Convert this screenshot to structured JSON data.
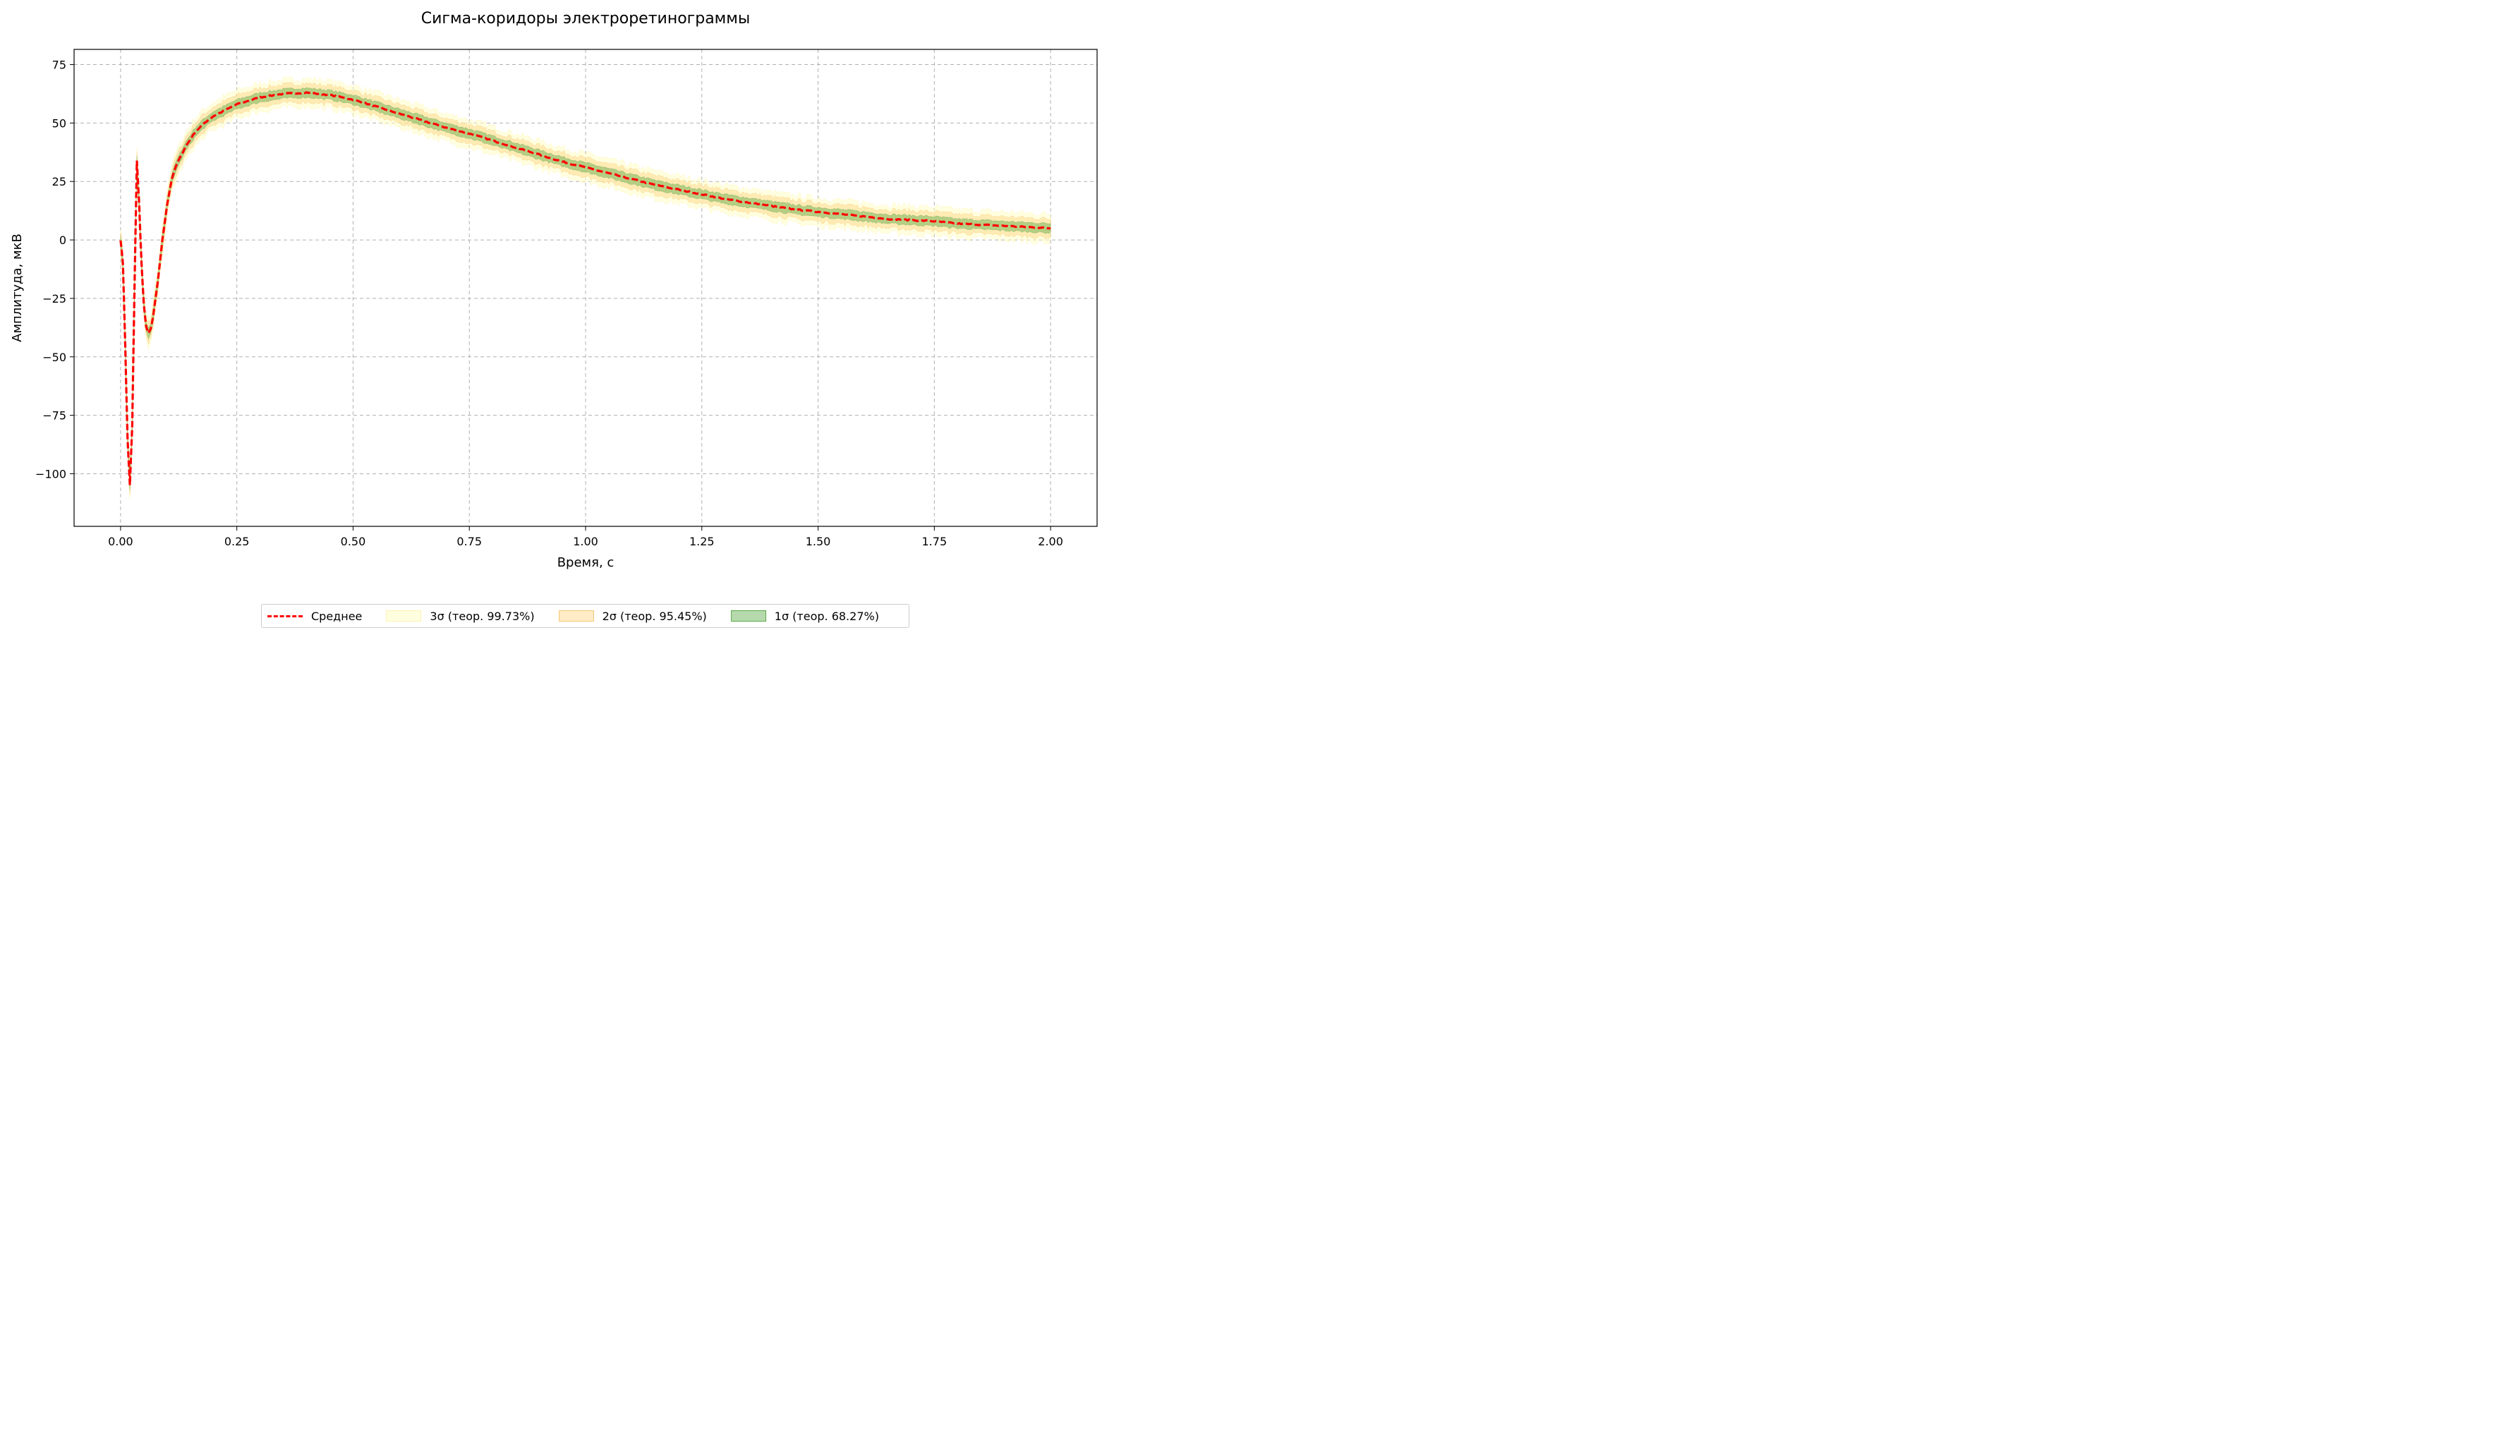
{
  "chart_data": {
    "type": "area",
    "title": "Сигма-коридоры электроретинограммы",
    "xlabel": "Время, с",
    "ylabel": "Амплитуда, мкВ",
    "xlim": [
      -0.1,
      2.1
    ],
    "ylim": [
      -122.5,
      81.5
    ],
    "xticks": [
      0.0,
      0.25,
      0.5,
      0.75,
      1.0,
      1.25,
      1.5,
      1.75,
      2.0
    ],
    "xtick_labels": [
      "0.00",
      "0.25",
      "0.50",
      "0.75",
      "1.00",
      "1.25",
      "1.50",
      "1.75",
      "2.00"
    ],
    "yticks": [
      75,
      50,
      25,
      0,
      -25,
      -50,
      -75,
      -100
    ],
    "ytick_labels": [
      "75",
      "50",
      "25",
      "0",
      "−25",
      "−50",
      "−75",
      "−100"
    ],
    "grid": true,
    "legend_position": "bottom-center",
    "sigma": 2.0,
    "mean_series": {
      "name": "Среднее",
      "color": "#ff0000",
      "x": [
        0.0,
        0.005,
        0.01,
        0.015,
        0.02,
        0.025,
        0.03,
        0.035,
        0.04,
        0.045,
        0.05,
        0.055,
        0.06,
        0.065,
        0.07,
        0.08,
        0.09,
        0.1,
        0.11,
        0.12,
        0.14,
        0.16,
        0.18,
        0.2,
        0.25,
        0.3,
        0.35,
        0.4,
        0.45,
        0.5,
        0.55,
        0.6,
        0.65,
        0.7,
        0.75,
        0.8,
        0.85,
        0.9,
        0.95,
        1.0,
        1.05,
        1.1,
        1.15,
        1.2,
        1.25,
        1.3,
        1.35,
        1.4,
        1.45,
        1.5,
        1.55,
        1.6,
        1.65,
        1.7,
        1.75,
        1.8,
        1.85,
        1.9,
        1.95,
        2.0
      ],
      "y": [
        0,
        -10,
        -45,
        -85,
        -105,
        -80,
        -20,
        34,
        15,
        -10,
        -28,
        -37,
        -40,
        -38,
        -33,
        -18,
        0,
        15,
        26,
        32,
        40,
        46,
        50,
        53,
        58,
        61,
        62.5,
        63,
        62,
        60,
        57,
        54,
        51,
        48,
        45.5,
        42.5,
        39.5,
        36.5,
        33.5,
        31,
        28.5,
        26,
        23.5,
        21.5,
        19.5,
        17.5,
        16,
        14.5,
        13,
        12,
        11,
        10,
        9,
        8.5,
        8,
        7,
        6.5,
        6,
        5.5,
        5
      ]
    },
    "bands": [
      {
        "name": "3σ (теор. 99.73%)",
        "k": 3,
        "fill": "#ffffcc",
        "edge": "#ffe680",
        "opacity": 0.6
      },
      {
        "name": "2σ (теор. 95.45%)",
        "k": 2,
        "fill": "#ffd27f",
        "edge": "#f5b041",
        "opacity": 0.45
      },
      {
        "name": "1σ (теор. 68.27%)",
        "k": 1,
        "fill": "#5aaa46",
        "edge": "#2e8b2e",
        "opacity": 0.45
      }
    ]
  }
}
